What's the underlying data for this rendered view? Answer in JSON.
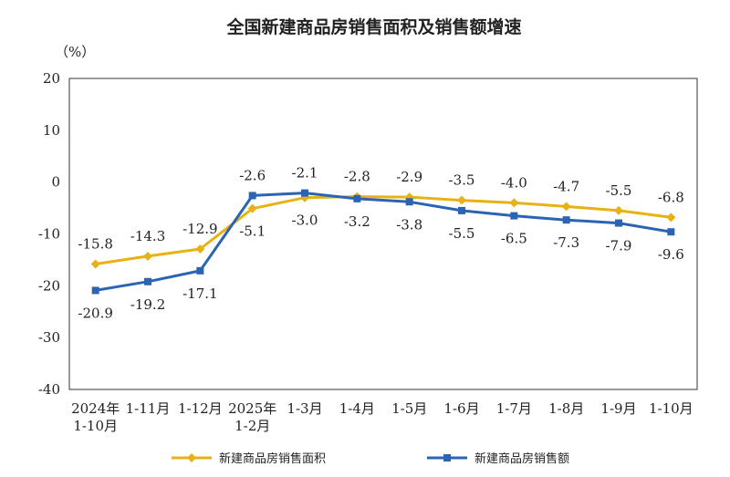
{
  "chart_data": {
    "type": "line",
    "title": "全国新建商品房销售面积及销售额增速",
    "ylabel": "（%）",
    "ylim": [
      -40,
      20
    ],
    "yticks": [
      20,
      10,
      0,
      -10,
      -20,
      -30,
      -40
    ],
    "grid": false,
    "legend_position": "bottom",
    "categories": [
      [
        "2024年",
        "1-10月"
      ],
      [
        "1-11月"
      ],
      [
        "1-12月"
      ],
      [
        "2025年",
        "1-2月"
      ],
      [
        "1-3月"
      ],
      [
        "1-4月"
      ],
      [
        "1-5月"
      ],
      [
        "1-6月"
      ],
      [
        "1-7月"
      ],
      [
        "1-8月"
      ],
      [
        "1-9月"
      ],
      [
        "1-10月"
      ]
    ],
    "series": [
      {
        "name": "新建商品房销售面积",
        "color": "#E8B114",
        "marker": "diamond",
        "values": [
          -15.8,
          -14.3,
          -12.9,
          -5.1,
          -3.0,
          -2.8,
          -2.9,
          -3.5,
          -4.0,
          -4.7,
          -5.5,
          -6.8
        ],
        "label_text": [
          "-15.8",
          "-14.3",
          "-12.9",
          "-5.1",
          "-3.0",
          "-2.8",
          "-2.9",
          "-3.5",
          "-4.0",
          "-4.7",
          "-5.5",
          "-6.8"
        ],
        "label_pos": [
          "above",
          "above",
          "above",
          "below",
          "below",
          "above",
          "above",
          "above",
          "above",
          "above",
          "above",
          "above"
        ]
      },
      {
        "name": "新建商品房销售额",
        "color": "#2A64B3",
        "marker": "square",
        "values": [
          -20.9,
          -19.2,
          -17.1,
          -2.6,
          -2.1,
          -3.2,
          -3.8,
          -5.5,
          -6.5,
          -7.3,
          -7.9,
          -9.6
        ],
        "label_text": [
          "-20.9",
          "-19.2",
          "-17.1",
          "-2.6",
          "-2.1",
          "-3.2",
          "-3.8",
          "-5.5",
          "-6.5",
          "-7.3",
          "-7.9",
          "-9.6"
        ],
        "label_pos": [
          "below",
          "below",
          "below",
          "above",
          "above",
          "below",
          "below",
          "below",
          "below",
          "below",
          "below",
          "below"
        ]
      }
    ]
  }
}
